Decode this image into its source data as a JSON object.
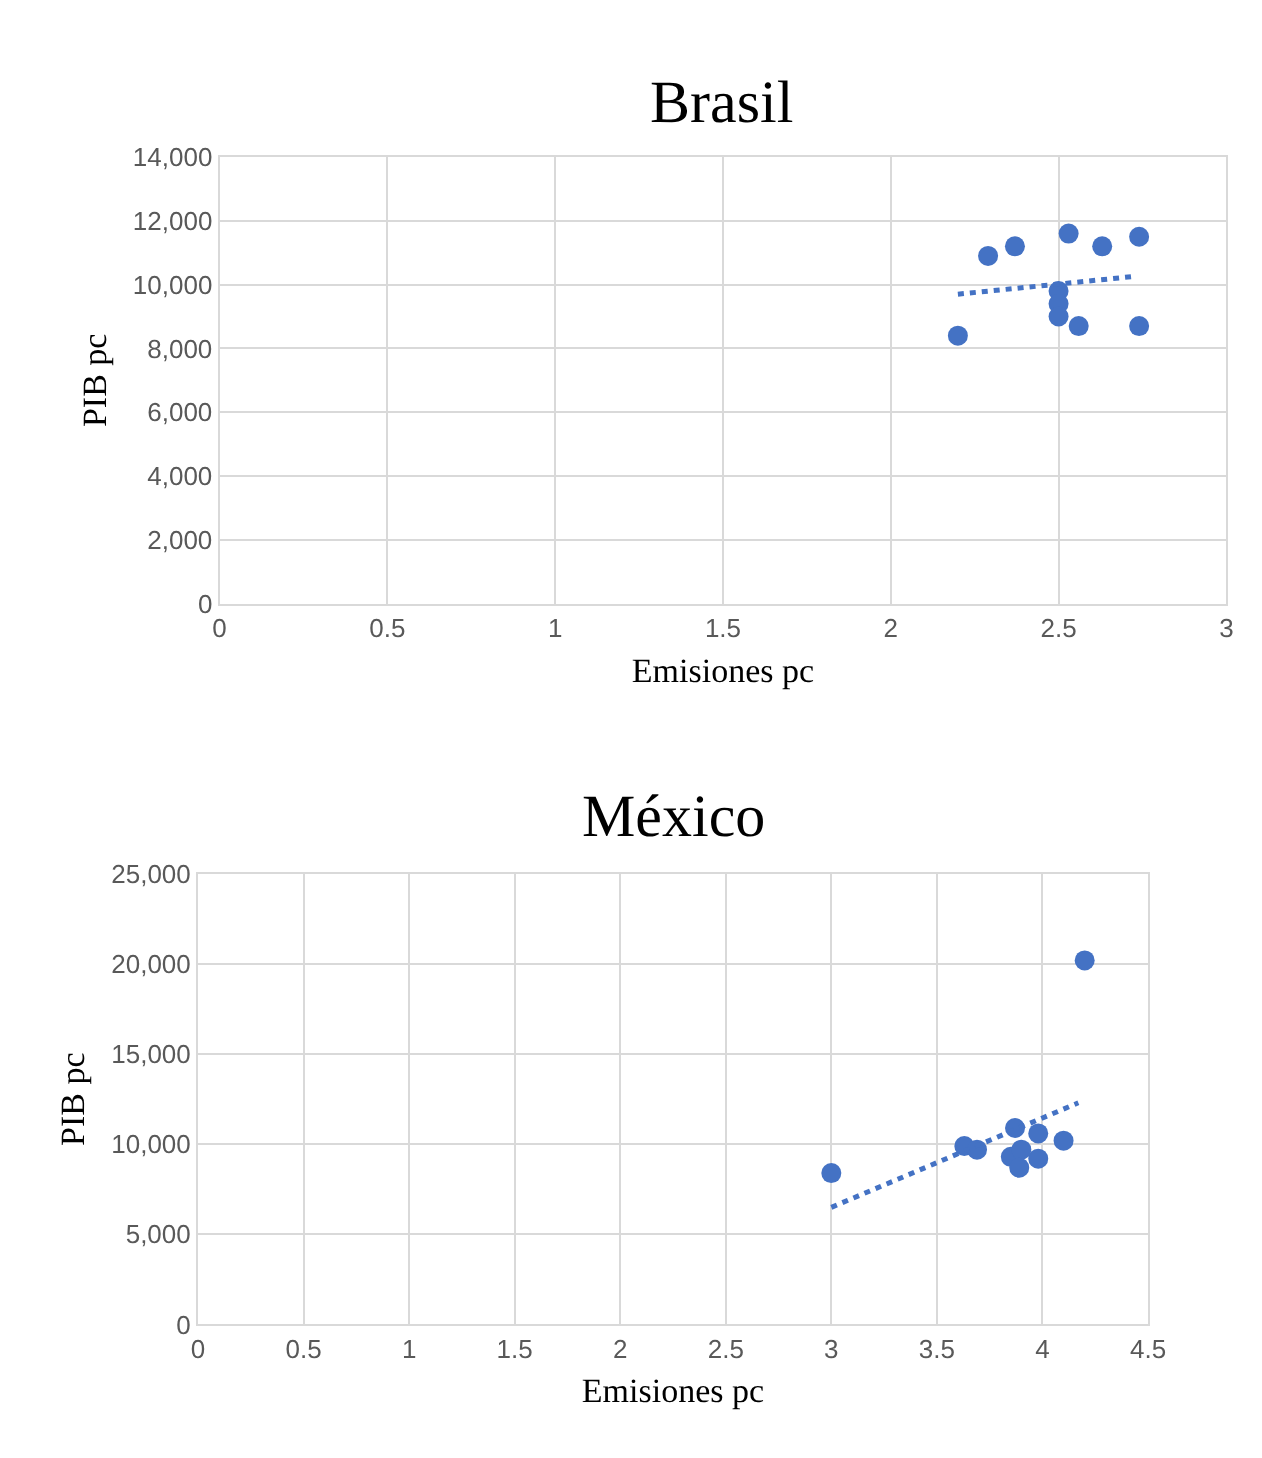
{
  "chart_data": [
    {
      "type": "scatter",
      "title": "Brasil",
      "xlabel": "Emisiones pc",
      "ylabel": "PIB pc",
      "grid": true,
      "marker": "circle",
      "xlim": [
        0,
        3
      ],
      "xticks": [
        0,
        0.5,
        1,
        1.5,
        2,
        2.5,
        3
      ],
      "ylim": [
        0,
        14000
      ],
      "yticks": [
        {
          "value": 0,
          "label": "0"
        },
        {
          "value": 2000,
          "label": "2,000"
        },
        {
          "value": 4000,
          "label": "4,000"
        },
        {
          "value": 6000,
          "label": "6,000"
        },
        {
          "value": 8000,
          "label": "8,000"
        },
        {
          "value": 10000,
          "label": "10,000"
        },
        {
          "value": 12000,
          "label": "12,000"
        },
        {
          "value": 14000,
          "label": "14,000"
        }
      ],
      "series": [
        {
          "type": "scatter",
          "color": "#4472c4",
          "x": [
            2.2,
            2.29,
            2.37,
            2.53,
            2.5,
            2.5,
            2.5,
            2.56,
            2.63,
            2.74,
            2.74
          ],
          "values": [
            8400,
            10900,
            11200,
            11600,
            9800,
            9400,
            9000,
            8700,
            11200,
            11500,
            8700
          ]
        },
        {
          "type": "line",
          "color": "#4472c4",
          "line_style": "dotted",
          "marker": "none",
          "x": [
            2.2,
            2.72
          ],
          "values": [
            9700,
            10250
          ]
        }
      ]
    },
    {
      "type": "scatter",
      "title": "México",
      "xlabel": "Emisiones pc",
      "ylabel": "PIB pc",
      "grid": true,
      "marker": "circle",
      "xlim": [
        0,
        4.5
      ],
      "xticks": [
        0,
        0.5,
        1,
        1.5,
        2,
        2.5,
        3,
        3.5,
        4,
        4.5
      ],
      "ylim": [
        0,
        25000
      ],
      "yticks": [
        {
          "value": 0,
          "label": "0"
        },
        {
          "value": 5000,
          "label": "5,000"
        },
        {
          "value": 10000,
          "label": "10,000"
        },
        {
          "value": 15000,
          "label": "15,000"
        },
        {
          "value": 20000,
          "label": "20,000"
        },
        {
          "value": 25000,
          "label": "25,000"
        }
      ],
      "series": [
        {
          "type": "scatter",
          "color": "#4472c4",
          "x": [
            3.0,
            3.63,
            3.69,
            3.87,
            3.85,
            3.9,
            3.89,
            3.98,
            3.98,
            4.1,
            4.2
          ],
          "values": [
            8400,
            9900,
            9700,
            10900,
            9300,
            9700,
            8700,
            10600,
            9200,
            10200,
            20200
          ]
        },
        {
          "type": "line",
          "color": "#4472c4",
          "line_style": "dotted",
          "marker": "none",
          "x": [
            3.0,
            4.17
          ],
          "values": [
            6500,
            12300
          ]
        }
      ]
    }
  ]
}
